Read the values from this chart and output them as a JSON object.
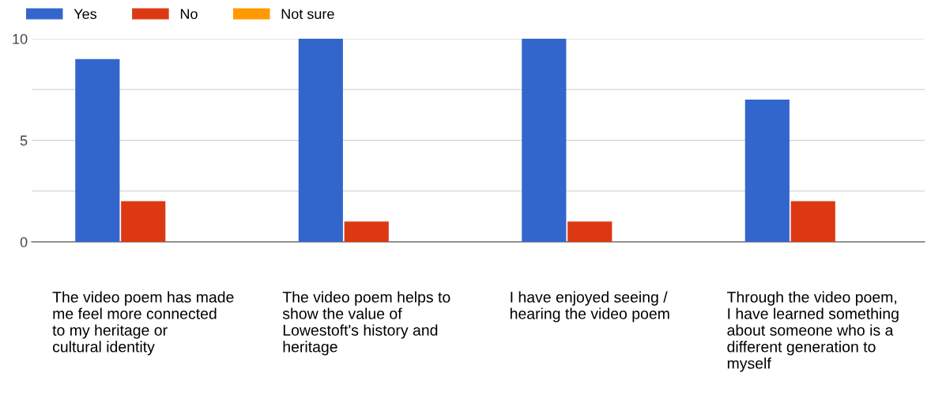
{
  "chart_data": {
    "type": "bar",
    "categories": [
      "The video poem has made me feel more connected to my heritage or cultural identity",
      "The video poem helps to show the value of Lowestoft's history and heritage",
      "I have enjoyed seeing / hearing the video poem",
      "Through the video poem, I have learned something about someone who is a different generation to myself"
    ],
    "series": [
      {
        "name": "Yes",
        "color": "#3366cc",
        "values": [
          9,
          10,
          10,
          7
        ]
      },
      {
        "name": "No",
        "color": "#dc3912",
        "values": [
          2,
          1,
          1,
          2
        ]
      },
      {
        "name": "Not sure",
        "color": "#ff9900",
        "values": [
          0,
          0,
          0,
          0
        ]
      }
    ],
    "ylim": [
      0,
      10
    ],
    "yticks": [
      0,
      {
        "value": 2.5,
        "label": null
      },
      5,
      {
        "value": 7.5,
        "label": null
      },
      10
    ],
    "grid": "y",
    "legend": "top left"
  }
}
